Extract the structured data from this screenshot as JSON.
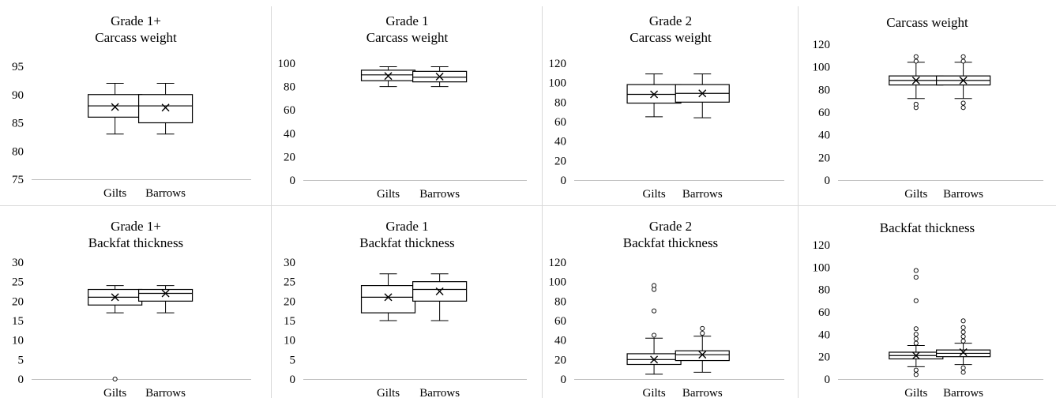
{
  "chart_data": [
    {
      "type": "box",
      "title_lines": [
        "Grade 1+",
        "Carcass weight"
      ],
      "categories": [
        "Gilts",
        "Barrows"
      ],
      "ylim": [
        75,
        95
      ],
      "yticks": [
        75,
        80,
        85,
        90,
        95
      ],
      "series": [
        {
          "category": "Gilts",
          "min": 83,
          "q1": 86,
          "median": 88,
          "q3": 90,
          "max": 92,
          "mean": 87.8,
          "outliers": []
        },
        {
          "category": "Barrows",
          "min": 83,
          "q1": 85,
          "median": 88,
          "q3": 90,
          "max": 92,
          "mean": 87.7,
          "outliers": []
        }
      ]
    },
    {
      "type": "box",
      "title_lines": [
        "Grade 1",
        "Carcass weight"
      ],
      "categories": [
        "Gilts",
        "Barrows"
      ],
      "ylim": [
        0,
        100
      ],
      "yticks": [
        0,
        20,
        40,
        60,
        80,
        100
      ],
      "series": [
        {
          "category": "Gilts",
          "min": 80,
          "q1": 85,
          "median": 90,
          "q3": 94,
          "max": 97,
          "mean": 89,
          "outliers": []
        },
        {
          "category": "Barrows",
          "min": 80,
          "q1": 84,
          "median": 88,
          "q3": 93,
          "max": 97,
          "mean": 88.5,
          "outliers": []
        }
      ]
    },
    {
      "type": "box",
      "title_lines": [
        "Grade 2",
        "Carcass weight"
      ],
      "categories": [
        "Gilts",
        "Barrows"
      ],
      "ylim": [
        0,
        120
      ],
      "yticks": [
        0,
        20,
        40,
        60,
        80,
        100,
        120
      ],
      "series": [
        {
          "category": "Gilts",
          "min": 65,
          "q1": 79,
          "median": 88,
          "q3": 98,
          "max": 109,
          "mean": 88,
          "outliers": []
        },
        {
          "category": "Barrows",
          "min": 64,
          "q1": 80,
          "median": 89,
          "q3": 98,
          "max": 109,
          "mean": 89,
          "outliers": []
        }
      ]
    },
    {
      "type": "box",
      "title_lines": [
        "Carcass weight"
      ],
      "categories": [
        "Gilts",
        "Barrows"
      ],
      "ylim": [
        0,
        120
      ],
      "yticks": [
        0,
        20,
        40,
        60,
        80,
        100,
        120
      ],
      "series": [
        {
          "category": "Gilts",
          "min": 72,
          "q1": 84,
          "median": 88,
          "q3": 92,
          "max": 104,
          "mean": 88,
          "outliers": [
            64,
            67,
            105,
            109
          ]
        },
        {
          "category": "Barrows",
          "min": 72,
          "q1": 84,
          "median": 88,
          "q3": 92,
          "max": 104,
          "mean": 88,
          "outliers": [
            64,
            68,
            105,
            109
          ]
        }
      ]
    },
    {
      "type": "box",
      "title_lines": [
        "Grade 1+",
        "Backfat thickness"
      ],
      "categories": [
        "Gilts",
        "Barrows"
      ],
      "ylim": [
        0,
        30
      ],
      "yticks": [
        0,
        5,
        10,
        15,
        20,
        25,
        30
      ],
      "series": [
        {
          "category": "Gilts",
          "min": 17,
          "q1": 19,
          "median": 21,
          "q3": 23,
          "max": 24,
          "mean": 21,
          "outliers": [
            0
          ]
        },
        {
          "category": "Barrows",
          "min": 17,
          "q1": 20,
          "median": 22,
          "q3": 23,
          "max": 24,
          "mean": 22,
          "outliers": []
        }
      ]
    },
    {
      "type": "box",
      "title_lines": [
        "Grade 1",
        "Backfat thickness"
      ],
      "categories": [
        "Gilts",
        "Barrows"
      ],
      "ylim": [
        0,
        30
      ],
      "yticks": [
        0,
        5,
        10,
        15,
        20,
        25,
        30
      ],
      "series": [
        {
          "category": "Gilts",
          "min": 15,
          "q1": 17,
          "median": 21,
          "q3": 24,
          "max": 27,
          "mean": 21,
          "outliers": []
        },
        {
          "category": "Barrows",
          "min": 15,
          "q1": 20,
          "median": 23,
          "q3": 25,
          "max": 27,
          "mean": 22.5,
          "outliers": []
        }
      ]
    },
    {
      "type": "box",
      "title_lines": [
        "Grade 2",
        "Backfat thickness"
      ],
      "categories": [
        "Gilts",
        "Barrows"
      ],
      "ylim": [
        0,
        120
      ],
      "yticks": [
        0,
        20,
        40,
        60,
        80,
        100,
        120
      ],
      "series": [
        {
          "category": "Gilts",
          "min": 5,
          "q1": 15,
          "median": 20,
          "q3": 26,
          "max": 42,
          "mean": 20,
          "outliers": [
            45,
            70,
            92,
            96
          ]
        },
        {
          "category": "Barrows",
          "min": 7,
          "q1": 19,
          "median": 25,
          "q3": 29,
          "max": 44,
          "mean": 25,
          "outliers": [
            47,
            52
          ]
        }
      ]
    },
    {
      "type": "box",
      "title_lines": [
        "Backfat thickness"
      ],
      "categories": [
        "Gilts",
        "Barrows"
      ],
      "ylim": [
        0,
        120
      ],
      "yticks": [
        0,
        20,
        40,
        60,
        80,
        100,
        120
      ],
      "series": [
        {
          "category": "Gilts",
          "min": 11,
          "q1": 18,
          "median": 21,
          "q3": 24,
          "max": 30,
          "mean": 21,
          "outliers": [
            4,
            8,
            32,
            36,
            40,
            45,
            70,
            91,
            97
          ]
        },
        {
          "category": "Barrows",
          "min": 13,
          "q1": 20,
          "median": 23,
          "q3": 26,
          "max": 32,
          "mean": 24,
          "outliers": [
            6,
            10,
            34,
            38,
            42,
            46,
            52
          ]
        }
      ]
    }
  ]
}
